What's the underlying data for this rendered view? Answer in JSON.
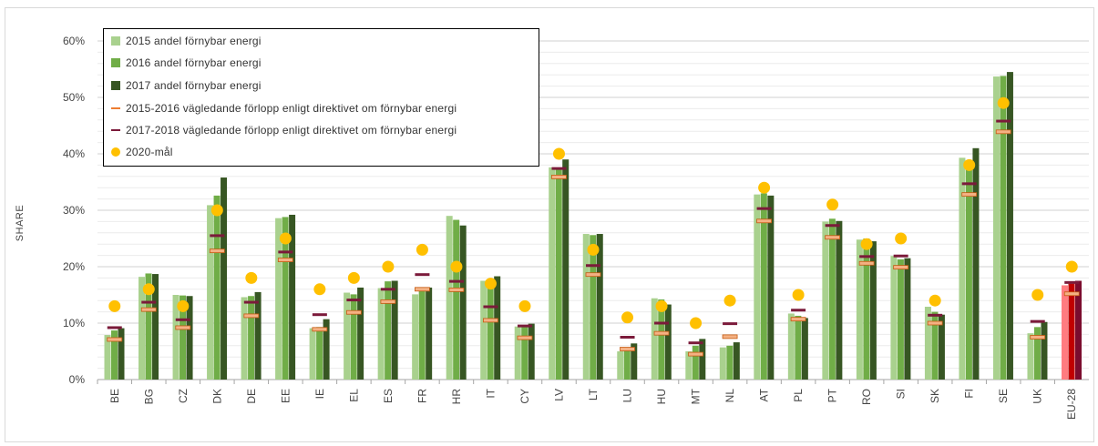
{
  "chart_data": {
    "type": "bar",
    "ylabel": "SHARE",
    "ylim": [
      0,
      60
    ],
    "yticks": [
      "0%",
      "10%",
      "20%",
      "30%",
      "40%",
      "50%",
      "60%"
    ],
    "grid": true,
    "legend_position": "top-left",
    "categories": [
      "BE",
      "BG",
      "CZ",
      "DK",
      "DE",
      "EE",
      "IE",
      "EL",
      "ES",
      "FR",
      "HR",
      "IT",
      "CY",
      "LV",
      "LT",
      "LU",
      "HU",
      "MT",
      "NL",
      "AT",
      "PL",
      "PT",
      "RO",
      "SI",
      "SK",
      "FI",
      "SE",
      "UK",
      "EU-28"
    ],
    "series": [
      {
        "name": "2015 andel förnybar energi",
        "kind": "bar",
        "color": "#a9d18e",
        "values": [
          7.9,
          18.2,
          15.0,
          30.9,
          14.6,
          28.6,
          9.1,
          15.4,
          16.2,
          15.1,
          29.0,
          17.5,
          9.4,
          37.6,
          25.8,
          5.0,
          14.4,
          5.0,
          5.7,
          32.8,
          11.7,
          28.0,
          24.8,
          21.9,
          12.9,
          39.3,
          53.7,
          8.2,
          16.7
        ]
      },
      {
        "name": "2016 andel förnybar energi",
        "kind": "bar",
        "color": "#70ad47",
        "values": [
          8.7,
          18.8,
          14.9,
          32.6,
          14.8,
          28.8,
          9.3,
          15.1,
          17.4,
          16.0,
          28.3,
          17.4,
          9.3,
          37.2,
          25.6,
          5.4,
          14.2,
          6.0,
          6.0,
          33.0,
          11.3,
          28.5,
          25.0,
          21.3,
          12.0,
          38.7,
          53.8,
          9.3,
          17.0
        ]
      },
      {
        "name": "2017 andel förnybar energi",
        "kind": "bar",
        "color": "#375623",
        "values": [
          9.1,
          18.7,
          14.8,
          35.8,
          15.5,
          29.2,
          10.7,
          16.3,
          17.5,
          16.3,
          27.3,
          18.3,
          9.9,
          39.0,
          25.8,
          6.4,
          13.3,
          7.2,
          6.6,
          32.6,
          10.9,
          28.1,
          24.5,
          21.5,
          11.5,
          41.0,
          54.5,
          10.2,
          17.5
        ]
      },
      {
        "name": "2015-2016 vägledande förlopp enligt direktivet om förnybar energi",
        "kind": "marker",
        "color": "#f4b183",
        "border": "#c55a11",
        "values": [
          7.1,
          12.4,
          9.2,
          22.8,
          11.3,
          21.2,
          8.9,
          11.9,
          13.8,
          16.0,
          15.9,
          10.5,
          7.4,
          35.9,
          18.6,
          5.4,
          8.2,
          4.5,
          7.6,
          28.1,
          10.7,
          25.2,
          20.6,
          19.9,
          10.0,
          32.8,
          43.9,
          7.5,
          15.2
        ]
      },
      {
        "name": "2017-2018 vägledande förlopp enligt direktivet om förnybar energi",
        "kind": "marker",
        "color": "#7b1a3a",
        "values": [
          9.2,
          13.7,
          10.6,
          25.5,
          13.7,
          22.6,
          11.5,
          14.1,
          16.0,
          18.6,
          17.4,
          12.9,
          9.5,
          37.4,
          20.2,
          7.5,
          10.0,
          6.5,
          9.9,
          30.3,
          12.3,
          27.3,
          21.8,
          21.9,
          11.4,
          34.7,
          45.8,
          10.3,
          17.2
        ]
      },
      {
        "name": "2020-mål",
        "kind": "dot",
        "color": "#ffc000",
        "values": [
          13,
          16,
          13,
          30,
          18,
          25,
          16,
          18,
          20,
          23,
          20,
          17,
          13,
          40,
          23,
          11,
          13,
          10,
          14,
          34,
          15,
          31,
          24,
          25,
          14,
          38,
          49,
          15,
          20
        ]
      }
    ],
    "eu28_colors": [
      "#ff7c80",
      "#c00000",
      "#7b0c2e"
    ]
  }
}
